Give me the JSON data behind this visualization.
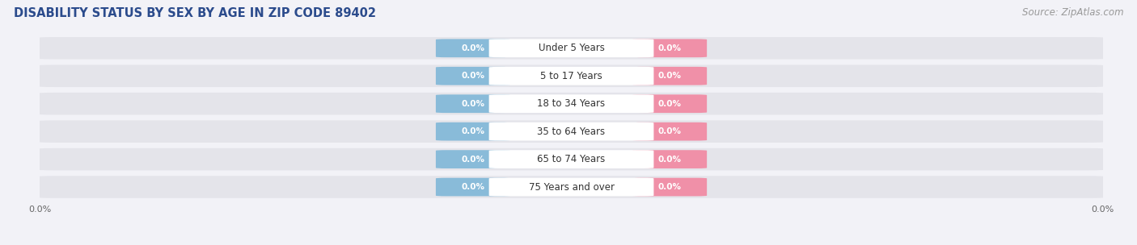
{
  "title": "DISABILITY STATUS BY SEX BY AGE IN ZIP CODE 89402",
  "source": "Source: ZipAtlas.com",
  "categories": [
    "Under 5 Years",
    "5 to 17 Years",
    "18 to 34 Years",
    "35 to 64 Years",
    "65 to 74 Years",
    "75 Years and over"
  ],
  "male_values": [
    0.0,
    0.0,
    0.0,
    0.0,
    0.0,
    0.0
  ],
  "female_values": [
    0.0,
    0.0,
    0.0,
    0.0,
    0.0,
    0.0
  ],
  "male_color": "#89BBD9",
  "female_color": "#F090A8",
  "male_label_color": "#FFFFFF",
  "female_label_color": "#FFFFFF",
  "category_bg_color": "#FFFFFF",
  "bar_bg_color": "#E4E4EA",
  "background_color": "#F2F2F7",
  "title_color": "#2B4B8C",
  "source_color": "#999999",
  "title_fontsize": 10.5,
  "source_fontsize": 8.5,
  "label_fontsize": 7.5,
  "category_fontsize": 8.5,
  "legend_fontsize": 9,
  "figsize": [
    14.06,
    3.04
  ]
}
